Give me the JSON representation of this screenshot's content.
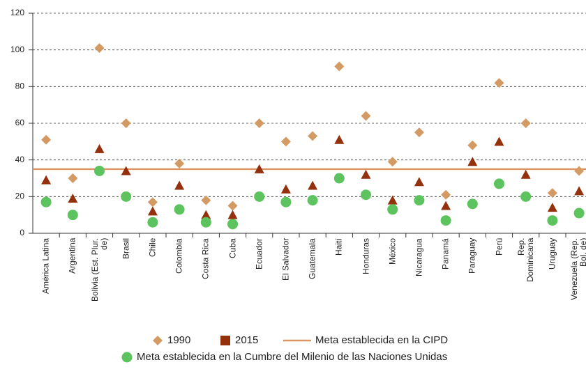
{
  "chart_data": {
    "type": "dot",
    "categories": [
      "América Latina",
      "Argentina",
      "Bolivia (Est. Plur. de)",
      "Brasil",
      "Chile",
      "Colombia",
      "Costa Rica",
      "Cuba",
      "Ecuador",
      "El Salvador",
      "Guatemala",
      "Haití",
      "Honduras",
      "México",
      "Nicaragua",
      "Panamá",
      "Paraguay",
      "Perú",
      "Rep. Dominicana",
      "Uruguay",
      "Venezuela (Rep. Bol. de)"
    ],
    "series": [
      {
        "name": "1990",
        "color": "#d39a63",
        "marker": "diamond",
        "values": [
          51,
          30,
          101,
          60,
          17,
          38,
          18,
          15,
          60,
          50,
          53,
          91,
          64,
          39,
          55,
          21,
          48,
          82,
          60,
          22,
          34
        ]
      },
      {
        "name": "2015",
        "color": "#94310c",
        "marker": "triangle",
        "values": [
          29,
          19,
          46,
          34,
          12,
          26,
          10,
          10,
          35,
          24,
          26,
          51,
          32,
          18,
          28,
          15,
          39,
          50,
          32,
          14,
          23
        ]
      },
      {
        "name": "Meta establecida en la Cumbre del Milenio de las Naciones Unidas",
        "color": "#5cc35e",
        "marker": "circle",
        "values": [
          17,
          10,
          34,
          20,
          6,
          13,
          6,
          5,
          20,
          17,
          18,
          30,
          21,
          13,
          18,
          7,
          16,
          27,
          20,
          7,
          11
        ]
      }
    ],
    "reference_line": {
      "name": "Meta establecida en la CIPD",
      "value": 35,
      "color": "#dc9560"
    },
    "ylim": [
      0,
      120
    ],
    "yticks": [
      0,
      20,
      40,
      60,
      80,
      100,
      120
    ],
    "grid": true
  }
}
